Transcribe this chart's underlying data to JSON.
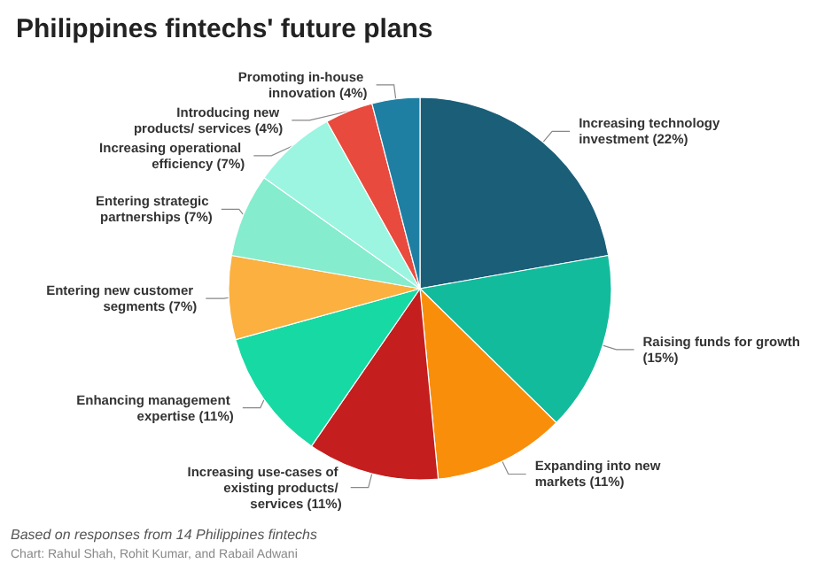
{
  "chart_data": {
    "type": "pie",
    "title": "Philippines fintechs' future plans",
    "categories": [
      "Increasing technology investment",
      "Raising funds for growth",
      "Expanding into new markets",
      "Increasing use-cases of existing products/ services",
      "Enhancing management expertise",
      "Entering new customer segments",
      "Entering strategic partnerships",
      "Increasing operational efficiency",
      "Introducing new products/ services",
      "Promoting in-house innovation"
    ],
    "values": [
      22,
      15,
      11,
      11,
      11,
      7,
      7,
      7,
      4,
      4
    ],
    "value_labels": [
      "(22%)",
      "(15%)",
      "(11%)",
      "(11%)",
      "(11%)",
      "(7%)",
      "(7%)",
      "(7%)",
      "(4%)",
      "(4%)"
    ],
    "colors": [
      "#1a5e78",
      "#12bb9c",
      "#f98e0b",
      "#c41e1e",
      "#17d9a3",
      "#fbb040",
      "#85eccd",
      "#9bf5e1",
      "#e84a3e",
      "#1f7fa3"
    ],
    "annotations": [
      "Based on responses from 14 Philippines fintechs",
      "Chart: Rahul Shah, Rohit Kumar, and Rabail Adwani"
    ]
  }
}
